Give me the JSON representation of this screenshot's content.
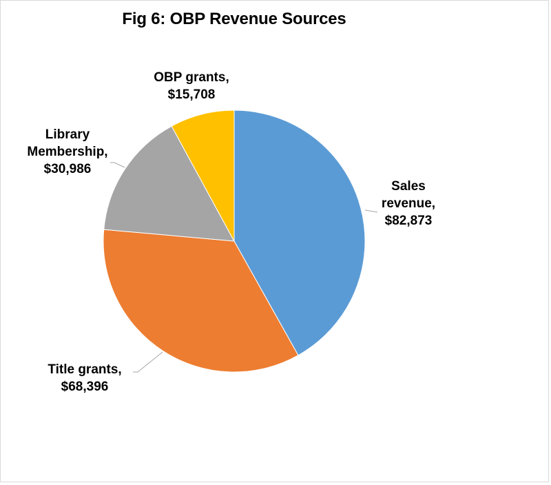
{
  "chart_data": {
    "type": "pie",
    "title": "Fig 6: OBP Revenue Sources",
    "categories": [
      "Sales revenue",
      "Title grants",
      "Library Membership",
      "OBP grants"
    ],
    "values": [
      82873,
      68396,
      30986,
      15708
    ],
    "value_labels": [
      "$82,873",
      "$68,396",
      "$30,986",
      "$15,708"
    ],
    "colors": [
      "#5B9BD5",
      "#ED7D31",
      "#A5A5A5",
      "#FFC000"
    ],
    "start_angle": "12 o'clock, clockwise",
    "legend": "none (data labels with leader lines)"
  },
  "labels": {
    "sales": {
      "name": "Sales",
      "name2": "revenue,",
      "value": "$82,873"
    },
    "title": {
      "name": "Title grants,",
      "value": "$68,396"
    },
    "library": {
      "name": "Library",
      "name2": "Membership,",
      "value": "$30,986"
    },
    "obp": {
      "name": "OBP grants,",
      "value": "$15,708"
    }
  }
}
